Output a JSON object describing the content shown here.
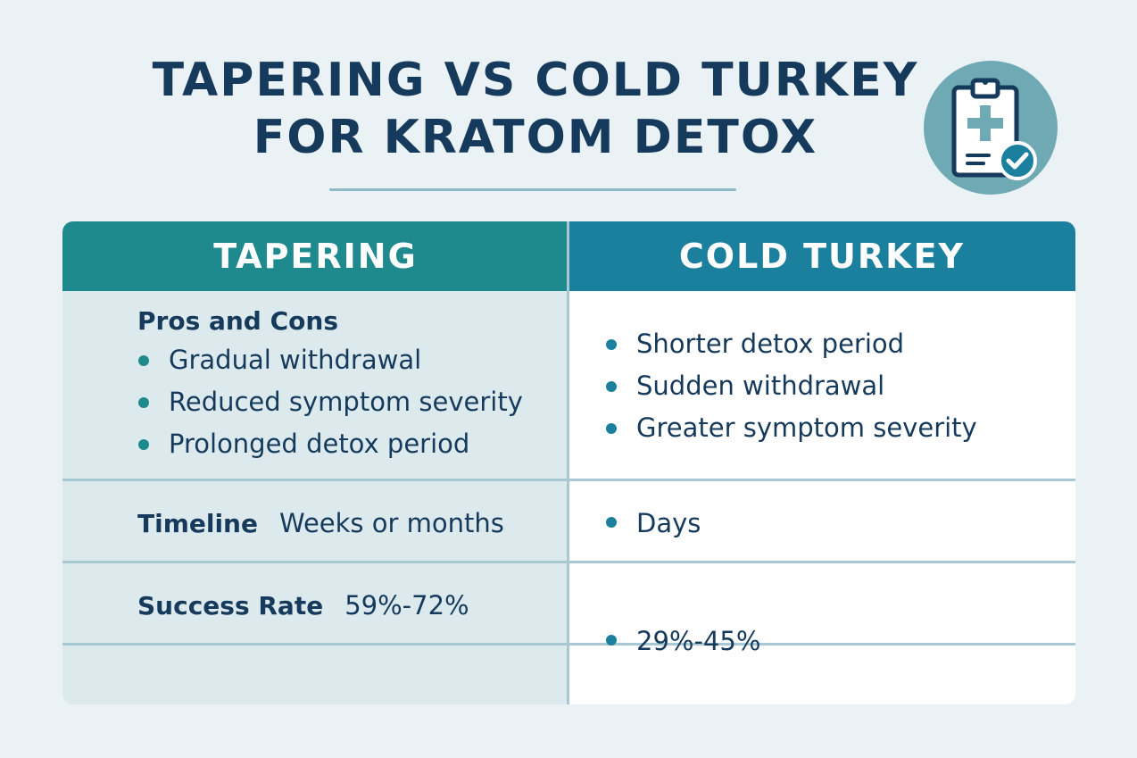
{
  "title": {
    "line1": "TAPERING VS COLD TURKEY",
    "line2": "FOR KRATOM DETOX"
  },
  "icon": "clipboard-medical-check-icon",
  "colors": {
    "tapering_header": "#1e8a8d",
    "cold_turkey_header": "#1b7f9e",
    "title_text": "#163a5c",
    "left_column_bg": "#dceaee",
    "badge_bg": "#6fa9b4"
  },
  "table": {
    "headers": {
      "tapering": "TAPERING",
      "cold_turkey": "COLD TURKEY"
    },
    "pros_cons": {
      "label": "Pros and Cons",
      "tapering": [
        "Gradual withdrawal",
        "Reduced symptom severity",
        "Prolonged detox period"
      ],
      "cold_turkey": [
        "Shorter detox period",
        "Sudden withdrawal",
        "Greater symptom severity"
      ]
    },
    "timeline": {
      "label": "Timeline",
      "tapering": "Weeks or months",
      "cold_turkey": "Days"
    },
    "success_rate": {
      "label": "Success Rate",
      "tapering": "59%-72%",
      "cold_turkey": "29%-45%"
    }
  }
}
